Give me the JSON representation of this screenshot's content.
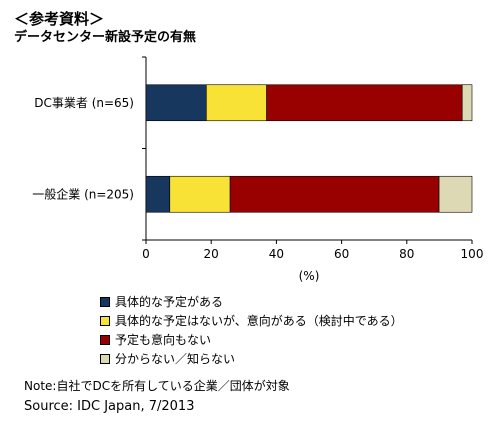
{
  "header": {
    "ref_label": "＜参考資料＞",
    "title": "データセンター新設予定の有無"
  },
  "chart_data": {
    "type": "bar",
    "orientation": "horizontal",
    "stacked": true,
    "title": "データセンター新設予定の有無",
    "xlabel": "(%)",
    "ylabel": "",
    "xlim": [
      0,
      100
    ],
    "xticks": [
      0,
      20,
      40,
      60,
      80,
      100
    ],
    "grid": false,
    "legend_position": "bottom",
    "categories": [
      "DC事業者 (n=65)",
      "一般企業 (n=205)"
    ],
    "series": [
      {
        "name": "具体的な予定がある",
        "color": "#17375e",
        "values": [
          18.5,
          7.3
        ]
      },
      {
        "name": "具体的な予定はないが、意向がある（検討中である）",
        "color": "#f7e235",
        "values": [
          18.5,
          18.5
        ]
      },
      {
        "name": "予定も意向もない",
        "color": "#990000",
        "values": [
          60.0,
          64.1
        ]
      },
      {
        "name": "分からない／知らない",
        "color": "#ddd9b4",
        "values": [
          3.0,
          10.1
        ]
      }
    ]
  },
  "footer": {
    "note": "Note:自社でDCを所有している企業／団体が対象",
    "source": "Source: IDC Japan, 7/2013"
  }
}
